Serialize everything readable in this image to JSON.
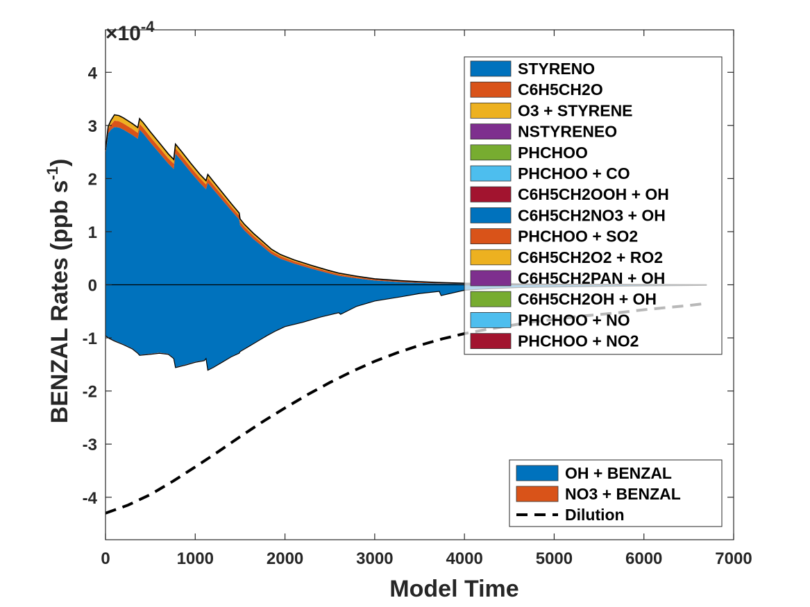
{
  "chart_data": {
    "type": "area",
    "xlabel": "Model Time",
    "ylabel": "BENZAL Rates (ppb s",
    "ylabel_sup": "-1",
    "ylabel_close": ")",
    "exponent_prefix": "×10",
    "exponent_power": "-4",
    "xlim": [
      0,
      7000
    ],
    "ylim": [
      -4.8,
      4.8
    ],
    "x_ticks": [
      0,
      1000,
      2000,
      3000,
      4000,
      5000,
      6000,
      7000
    ],
    "x_tick_labels": [
      "0",
      "1000",
      "2000",
      "3000",
      "4000",
      "5000",
      "6000",
      "7000"
    ],
    "y_ticks": [
      -4,
      -3,
      -2,
      -1,
      0,
      1,
      2,
      3,
      4
    ],
    "y_tick_labels": [
      "-4",
      "-3",
      "-2",
      "-1",
      "0",
      "1",
      "2",
      "3",
      "4"
    ],
    "production_legend": [
      {
        "name": "STYRENO",
        "color": "#0072BD"
      },
      {
        "name": "C6H5CH2O",
        "color": "#D95319"
      },
      {
        "name": "O3 + STYRENE",
        "color": "#EDB120"
      },
      {
        "name": "NSTYRENEO",
        "color": "#7E2F8E"
      },
      {
        "name": "PHCHOO",
        "color": "#77AC30"
      },
      {
        "name": "PHCHOO + CO",
        "color": "#4DBEEE"
      },
      {
        "name": "C6H5CH2OOH + OH",
        "color": "#A2142F"
      },
      {
        "name": "C6H5CH2NO3 + OH",
        "color": "#0072BD"
      },
      {
        "name": "PHCHOO + SO2",
        "color": "#D95319"
      },
      {
        "name": "C6H5CH2O2 + RO2",
        "color": "#EDB120"
      },
      {
        "name": "C6H5CH2PAN + OH",
        "color": "#7E2F8E"
      },
      {
        "name": "C6H5CH2OH + OH",
        "color": "#77AC30"
      },
      {
        "name": "PHCHOO + NO",
        "color": "#4DBEEE"
      },
      {
        "name": "PHCHOO + NO2",
        "color": "#A2142F"
      }
    ],
    "loss_legend": [
      {
        "name": "OH + BENZAL",
        "color": "#0072BD",
        "kind": "patch"
      },
      {
        "name": "NO3 + BENZAL",
        "color": "#D95319",
        "kind": "patch"
      },
      {
        "name": "Dilution",
        "color": "#000000",
        "kind": "dashed-line"
      }
    ],
    "series": [
      {
        "name": "STYRENO",
        "color": "#0072BD",
        "x": [
          0,
          30,
          60,
          100,
          150,
          200,
          250,
          300,
          360,
          380,
          420,
          500,
          600,
          700,
          760,
          780,
          850,
          950,
          1050,
          1120,
          1140,
          1200,
          1300,
          1400,
          1490,
          1500,
          1550,
          1650,
          1750,
          1850,
          1950,
          2100,
          2300,
          2500,
          2600,
          2800,
          3000,
          3300,
          3500,
          3700,
          4000,
          4300,
          4600,
          5000,
          5500,
          6000,
          6400,
          6700
        ],
        "values": [
          2.45,
          2.85,
          2.92,
          2.97,
          2.96,
          2.92,
          2.87,
          2.82,
          2.75,
          2.92,
          2.85,
          2.68,
          2.48,
          2.28,
          2.18,
          2.47,
          2.33,
          2.12,
          1.92,
          1.8,
          1.92,
          1.8,
          1.6,
          1.4,
          1.23,
          1.12,
          1.02,
          0.86,
          0.72,
          0.58,
          0.49,
          0.4,
          0.3,
          0.21,
          0.17,
          0.12,
          0.08,
          0.05,
          0.035,
          0.025,
          0.016,
          0.012,
          0.008,
          0.005,
          0.003,
          0.002,
          0.001,
          0.0
        ]
      },
      {
        "name": "C6H5CH2O",
        "color": "#D95319",
        "x": [
          0,
          100,
          360,
          760,
          1120,
          1500,
          2000,
          3000,
          4000,
          5000,
          6700
        ],
        "values": [
          0.06,
          0.12,
          0.11,
          0.1,
          0.09,
          0.07,
          0.045,
          0.02,
          0.008,
          0.003,
          0.0
        ]
      },
      {
        "name": "O3 + STYRENE",
        "color": "#EDB120",
        "x": [
          0,
          100,
          360,
          760,
          1120,
          1500,
          2000,
          3000,
          4000,
          5000,
          6700
        ],
        "values": [
          0.03,
          0.11,
          0.1,
          0.08,
          0.07,
          0.05,
          0.03,
          0.012,
          0.005,
          0.002,
          0.0
        ]
      },
      {
        "name": "OH + BENZAL",
        "color": "#0072BD",
        "x": [
          0,
          40,
          100,
          200,
          300,
          360,
          380,
          500,
          600,
          700,
          760,
          780,
          900,
          1000,
          1100,
          1120,
          1140,
          1200,
          1300,
          1400,
          1490,
          1500,
          1600,
          1700,
          1800,
          1900,
          2000,
          2200,
          2400,
          2600,
          2620,
          2800,
          3000,
          3300,
          3500,
          3720,
          3740,
          4000,
          4300,
          4600,
          5000,
          5500,
          6000,
          6400,
          6700
        ],
        "values": [
          -0.95,
          -1.0,
          -1.05,
          -1.12,
          -1.2,
          -1.28,
          -1.32,
          -1.3,
          -1.28,
          -1.3,
          -1.38,
          -1.55,
          -1.5,
          -1.45,
          -1.42,
          -1.38,
          -1.6,
          -1.55,
          -1.45,
          -1.35,
          -1.28,
          -1.25,
          -1.15,
          -1.05,
          -0.95,
          -0.86,
          -0.78,
          -0.7,
          -0.6,
          -0.52,
          -0.55,
          -0.4,
          -0.3,
          -0.22,
          -0.16,
          -0.12,
          -0.2,
          -0.1,
          -0.07,
          -0.05,
          -0.04,
          -0.03,
          -0.02,
          -0.015,
          -0.01
        ]
      },
      {
        "name": "NO3 + BENZAL",
        "color": "#D95319",
        "x": [
          0,
          1000,
          3000,
          6700
        ],
        "values": [
          -0.01,
          -0.01,
          -0.005,
          0.0
        ]
      },
      {
        "name": "Dilution",
        "color": "#000000",
        "x": [
          0,
          250,
          500,
          750,
          1000,
          1250,
          1500,
          1750,
          2000,
          2250,
          2500,
          2750,
          3000,
          3250,
          3500,
          3750,
          4000,
          4250,
          4500,
          4750,
          5000,
          5250,
          5500,
          5750,
          6000,
          6250,
          6500,
          6700
        ],
        "values": [
          -4.3,
          -4.15,
          -3.95,
          -3.7,
          -3.43,
          -3.15,
          -2.86,
          -2.58,
          -2.32,
          -2.07,
          -1.84,
          -1.63,
          -1.44,
          -1.28,
          -1.14,
          -1.02,
          -0.92,
          -0.84,
          -0.77,
          -0.7,
          -0.65,
          -0.6,
          -0.56,
          -0.52,
          -0.47,
          -0.43,
          -0.39,
          -0.35
        ]
      }
    ]
  }
}
